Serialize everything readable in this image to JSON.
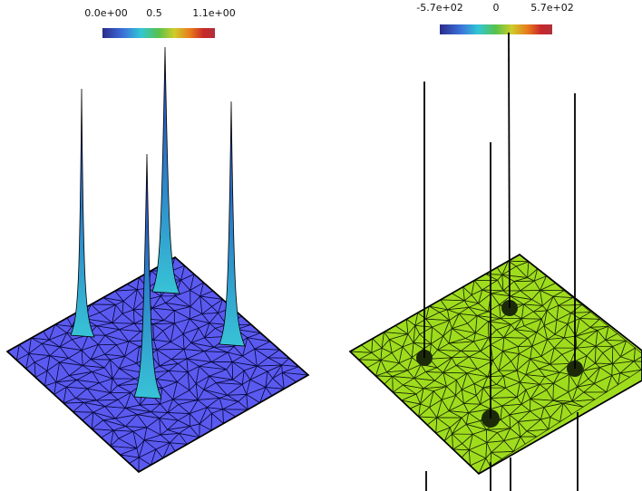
{
  "left_view": {
    "colorbar": {
      "ticks": [
        "0.0e+00",
        "0.5",
        "1.1e+00"
      ],
      "colors": [
        "#2b2b8c",
        "#3b6fd8",
        "#31c6d6",
        "#58c24a",
        "#cfcc2a",
        "#e87b1c",
        "#c8282a",
        "#b0303a"
      ]
    },
    "surface_color": "#5a5af0",
    "spike_color": "#4fa8c8"
  },
  "right_view": {
    "colorbar": {
      "ticks": [
        "-5.7e+02",
        "0",
        "5.7e+02"
      ],
      "colors": [
        "#2b2b8c",
        "#3b6fd8",
        "#31c6d6",
        "#58c24a",
        "#cfcc2a",
        "#e87b1c",
        "#c8282a",
        "#b0303a"
      ]
    },
    "surface_color": "#9fdc1e"
  }
}
